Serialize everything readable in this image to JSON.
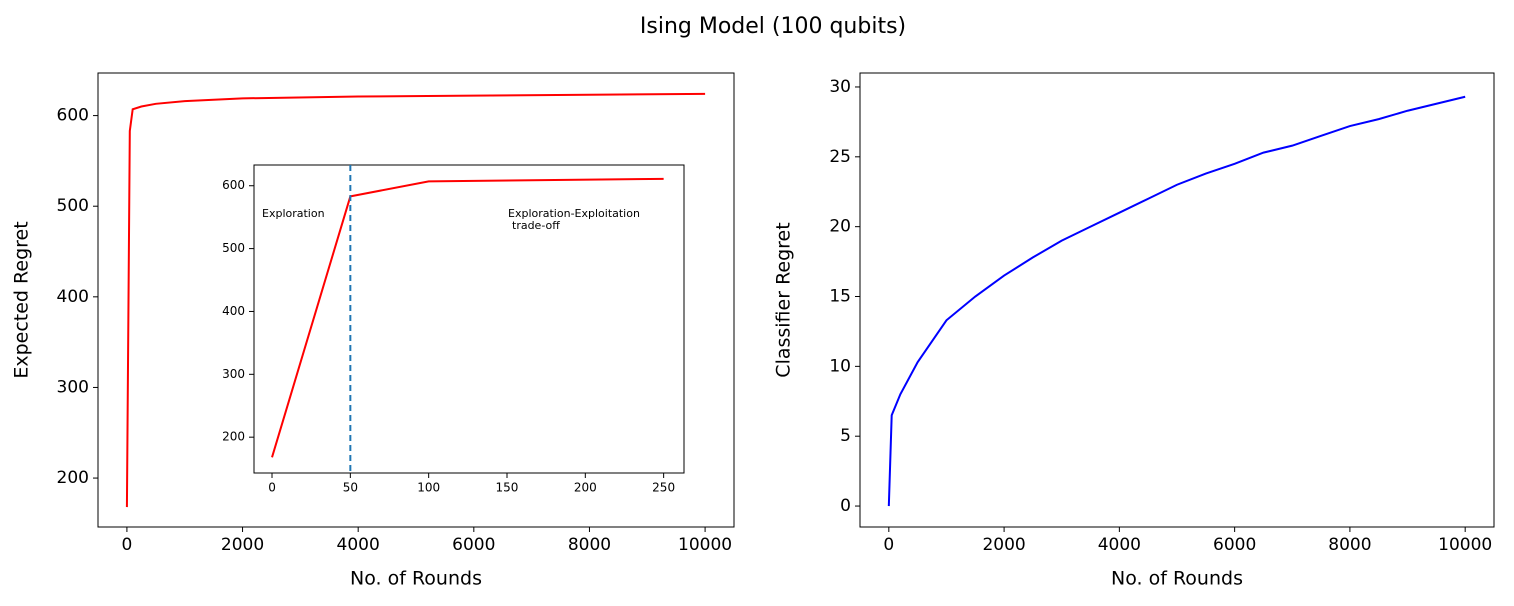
{
  "title": "Ising Model (100 qubits)",
  "chart_data": [
    {
      "type": "line",
      "xlabel": "No. of Rounds",
      "ylabel": "Expected Regret",
      "x": [
        0,
        50,
        100,
        250,
        500,
        1000,
        2000,
        4000,
        6000,
        8000,
        10000
      ],
      "values": [
        168,
        583,
        607,
        610,
        613,
        616,
        619,
        621,
        622,
        623,
        624
      ],
      "color": "#ff0000",
      "xlim": [
        -500,
        10500
      ],
      "ylim": [
        146,
        647
      ],
      "xticks": [
        0,
        2000,
        4000,
        6000,
        8000,
        10000
      ],
      "yticks": [
        200,
        300,
        400,
        500,
        600
      ]
    },
    {
      "type": "line",
      "x": [
        0,
        50,
        100,
        250
      ],
      "values": [
        168,
        583,
        607,
        611
      ],
      "color": "#ff0000",
      "xlim": [
        -11.5,
        263
      ],
      "ylim": [
        143,
        633
      ],
      "xticks": [
        0,
        50,
        100,
        150,
        200,
        250
      ],
      "yticks": [
        200,
        300,
        400,
        500,
        600
      ],
      "vline": 50,
      "vline_color": "#1f77b4",
      "annotations": [
        "Exploration",
        "Exploration-Exploitation",
        "trade-off"
      ]
    },
    {
      "type": "line",
      "xlabel": "No. of Rounds",
      "ylabel": "Classifier Regret",
      "x": [
        0,
        50,
        200,
        500,
        1000,
        1500,
        2000,
        2500,
        3000,
        3500,
        4000,
        4500,
        5000,
        5500,
        6000,
        6500,
        7000,
        7500,
        8000,
        8500,
        9000,
        9500,
        10000
      ],
      "values": [
        0,
        6.5,
        8,
        10.3,
        13.3,
        15,
        16.5,
        17.8,
        19,
        20,
        21,
        22,
        23,
        23.8,
        24.5,
        25.3,
        25.8,
        26.5,
        27.2,
        27.7,
        28.3,
        28.8,
        29.3
      ],
      "color": "#0000ff",
      "xlim": [
        -500,
        10500
      ],
      "ylim": [
        -1.5,
        31
      ],
      "xticks": [
        0,
        2000,
        4000,
        6000,
        8000,
        10000
      ],
      "yticks": [
        0,
        5,
        10,
        15,
        20,
        25,
        30
      ]
    }
  ]
}
